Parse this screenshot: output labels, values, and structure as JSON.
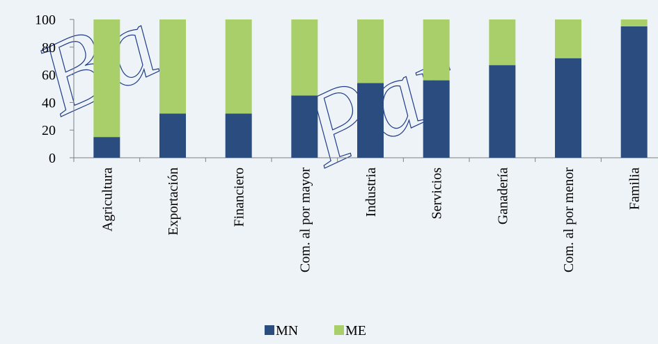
{
  "chart_data": {
    "type": "bar",
    "stacked": true,
    "categories": [
      "Agricultura",
      "Exportación",
      "Financiero",
      "Com. al por mayor",
      "Industria",
      "Servicios",
      "Ganadería",
      "Com. al por menor",
      "Familia"
    ],
    "series": [
      {
        "name": "MN",
        "values": [
          15,
          32,
          32,
          45,
          54,
          56,
          67,
          72,
          95
        ]
      },
      {
        "name": "ME",
        "values": [
          85,
          68,
          68,
          55,
          46,
          44,
          33,
          28,
          5
        ]
      }
    ],
    "ylim": [
      0,
      100
    ],
    "yticks": [
      0,
      20,
      40,
      60,
      80,
      100
    ],
    "grid": false,
    "legend_position": "bottom",
    "colors": {
      "MN": "#2b4c7e",
      "ME": "#a9cf6b"
    }
  }
}
